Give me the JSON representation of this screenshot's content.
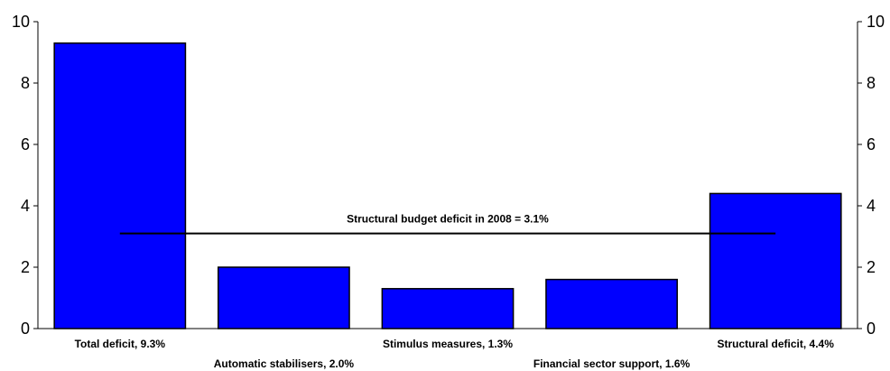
{
  "chart_data": {
    "type": "bar",
    "categories": [
      "Total deficit, 9.3%",
      "Automatic stabilisers, 2.0%",
      "Stimulus measures, 1.3%",
      "Financial sector support, 1.6%",
      "Structural deficit, 4.4%"
    ],
    "values": [
      9.3,
      2.0,
      1.3,
      1.6,
      4.4
    ],
    "ylim": [
      0,
      10
    ],
    "yticks": [
      "0",
      "2",
      "4",
      "6",
      "8",
      "10"
    ],
    "y2ticks": [
      "0",
      "2",
      "4",
      "6",
      "8",
      "10"
    ],
    "bar_color": "#0000ff",
    "grid": false,
    "reference_line": {
      "label": "Structural budget deficit in 2008 = 3.1%",
      "value": 3.1
    }
  }
}
